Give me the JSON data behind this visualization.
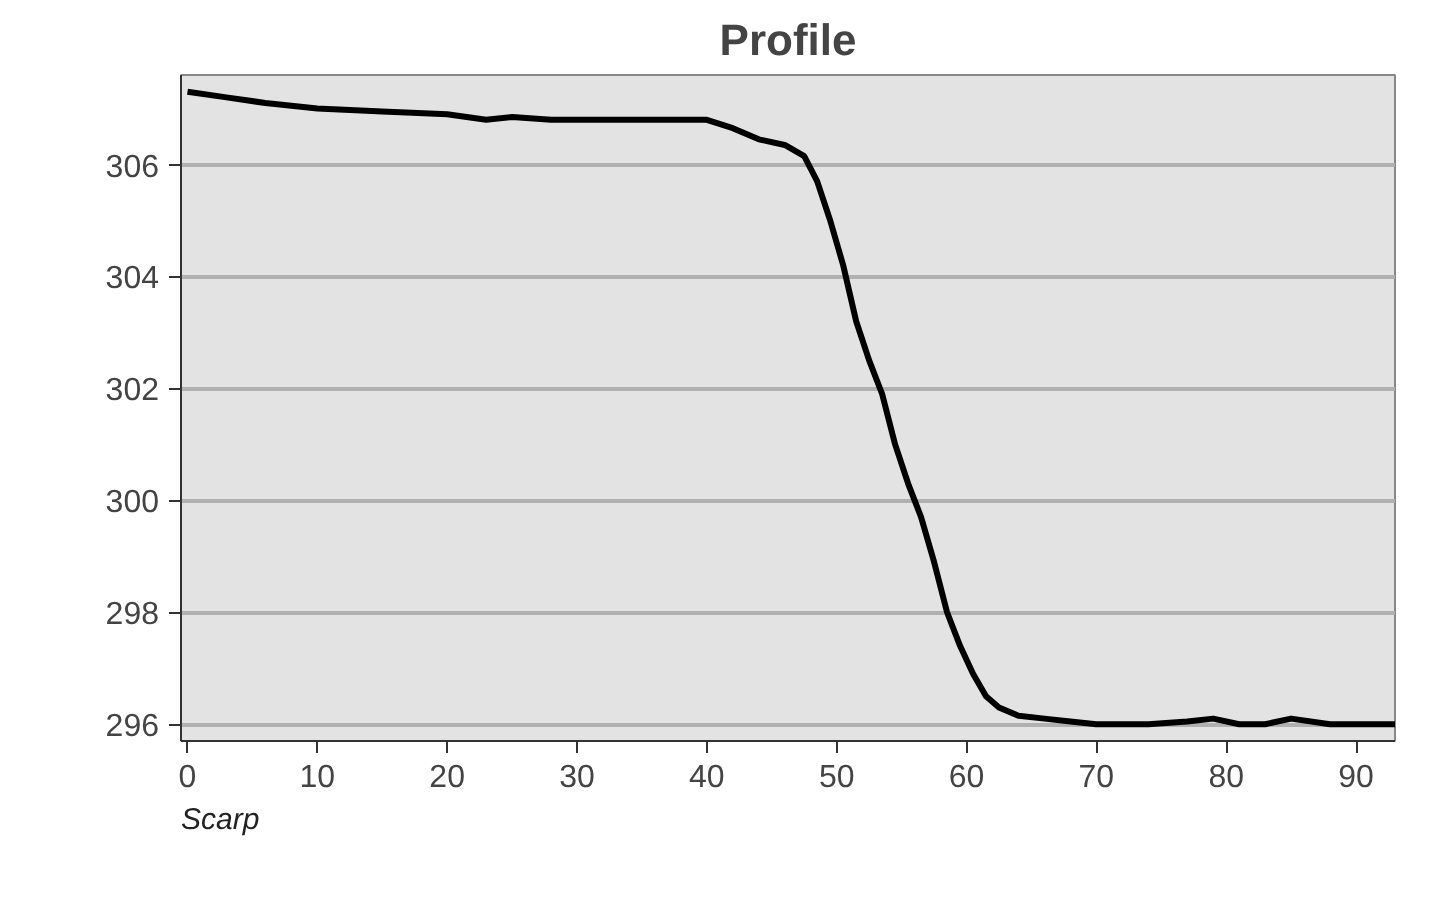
{
  "chart_data": {
    "type": "line",
    "title": "Profile",
    "x": [
      0,
      3,
      6,
      10,
      15,
      20,
      23,
      25,
      28,
      32,
      36,
      40,
      42,
      44,
      46,
      47.5,
      48.5,
      49.5,
      50.5,
      51.5,
      52.5,
      53.5,
      54.5,
      55.5,
      56.5,
      57.5,
      58.5,
      59.5,
      60.5,
      61.5,
      62.5,
      64,
      66,
      68,
      70,
      74,
      77,
      79,
      81,
      83,
      85,
      88,
      93
    ],
    "series": [
      {
        "color": "#000000",
        "values": [
          307.3,
          307.2,
          307.1,
          307.0,
          306.95,
          306.9,
          306.8,
          306.85,
          306.8,
          306.8,
          306.8,
          306.8,
          306.65,
          306.45,
          306.35,
          306.15,
          305.7,
          305.0,
          304.2,
          303.2,
          302.5,
          301.9,
          301.0,
          300.3,
          299.7,
          298.9,
          298.0,
          297.4,
          296.9,
          296.5,
          296.3,
          296.15,
          296.1,
          296.05,
          296.0,
          296.0,
          296.05,
          296.1,
          296.0,
          296.0,
          296.1,
          296.0,
          296.0
        ]
      }
    ],
    "xlim": [
      -0.5,
      93
    ],
    "ylim": [
      295.7,
      307.6
    ],
    "xticks": [
      0,
      10,
      20,
      30,
      40,
      50,
      60,
      70,
      80,
      90
    ],
    "yticks": [
      296,
      298,
      300,
      302,
      304,
      306
    ],
    "grid": "y",
    "line_style": "solid",
    "annotations": [
      "Scarp"
    ]
  }
}
